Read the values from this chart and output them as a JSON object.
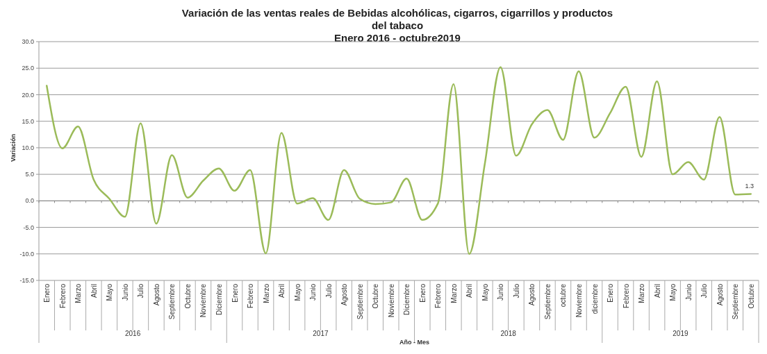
{
  "chart_data": {
    "type": "line",
    "title": "Variación de las ventas reales de Bebidas alcohólicas, cigarros, cigarrillos y productos del tabaco",
    "subtitle": "Enero 2016 - octubre2019",
    "xlabel": "Año - Mes",
    "ylabel": "Variación",
    "categories": [
      "Enero",
      "Febrero",
      "Marzo",
      "Abril",
      "Mayo",
      "Junio",
      "Julio",
      "Agosto",
      "Septiembre",
      "Octubre",
      "Noviembre",
      "Diciembre",
      "Enero",
      "Febrero",
      "Marzo",
      "Abril",
      "Mayo",
      "Junio",
      "Julio",
      "Agosto",
      "Septiembre",
      "Octubre",
      "Noviembre",
      "Diciembre",
      "Enero",
      "Febrero",
      "Marzo",
      "Abril",
      "Mayo",
      "Junio",
      "Julio",
      "Agosto",
      "Septiembre",
      "octubre",
      "Noviembre",
      "diciembre",
      "Enero",
      "Febrero",
      "Marzo",
      "Abril",
      "Mayo",
      "Junio",
      "Julio",
      "Agosto",
      "Septiembre",
      "Octubre"
    ],
    "series": [
      {
        "color": "#9bbb59",
        "values": [
          21.7,
          9.9,
          14.0,
          4.0,
          0.4,
          -3.0,
          14.6,
          -4.3,
          8.6,
          0.6,
          3.8,
          6.1,
          1.9,
          5.8,
          -9.9,
          12.8,
          -0.5,
          0.5,
          -3.6,
          5.8,
          0.4,
          -0.6,
          -0.3,
          4.2,
          -3.6,
          -0.5,
          22.0,
          -10.0,
          7.0,
          25.2,
          8.5,
          14.4,
          17.1,
          11.5,
          24.4,
          11.9,
          16.5,
          21.5,
          8.3,
          22.5,
          5.0,
          7.3,
          4.0,
          15.8,
          1.2,
          1.3
        ],
        "value_labels": [
          null,
          null,
          null,
          null,
          null,
          null,
          null,
          null,
          null,
          null,
          null,
          null,
          null,
          null,
          null,
          null,
          null,
          null,
          null,
          null,
          null,
          null,
          null,
          null,
          null,
          null,
          null,
          null,
          null,
          null,
          null,
          null,
          null,
          null,
          null,
          null,
          null,
          null,
          null,
          null,
          null,
          null,
          null,
          null,
          null,
          "1.3"
        ]
      }
    ],
    "ylim": [
      -15,
      30
    ],
    "yticks": [
      {
        "value": -15,
        "label": "-15.0"
      },
      {
        "value": -10,
        "label": "-10.0"
      },
      {
        "value": -5,
        "label": "-5.0"
      },
      {
        "value": 0,
        "label": "0.0"
      },
      {
        "value": 5,
        "label": "5.0"
      },
      {
        "value": 10,
        "label": "10.0"
      },
      {
        "value": 15,
        "label": "15.0"
      },
      {
        "value": 20,
        "label": "20.0"
      },
      {
        "value": 25,
        "label": "25.0"
      },
      {
        "value": 30,
        "label": "30.0"
      }
    ],
    "grid": "y",
    "marker": "none",
    "line_style": "solid",
    "annotations": [
      "2016",
      "2017",
      "2018",
      "2019"
    ]
  }
}
